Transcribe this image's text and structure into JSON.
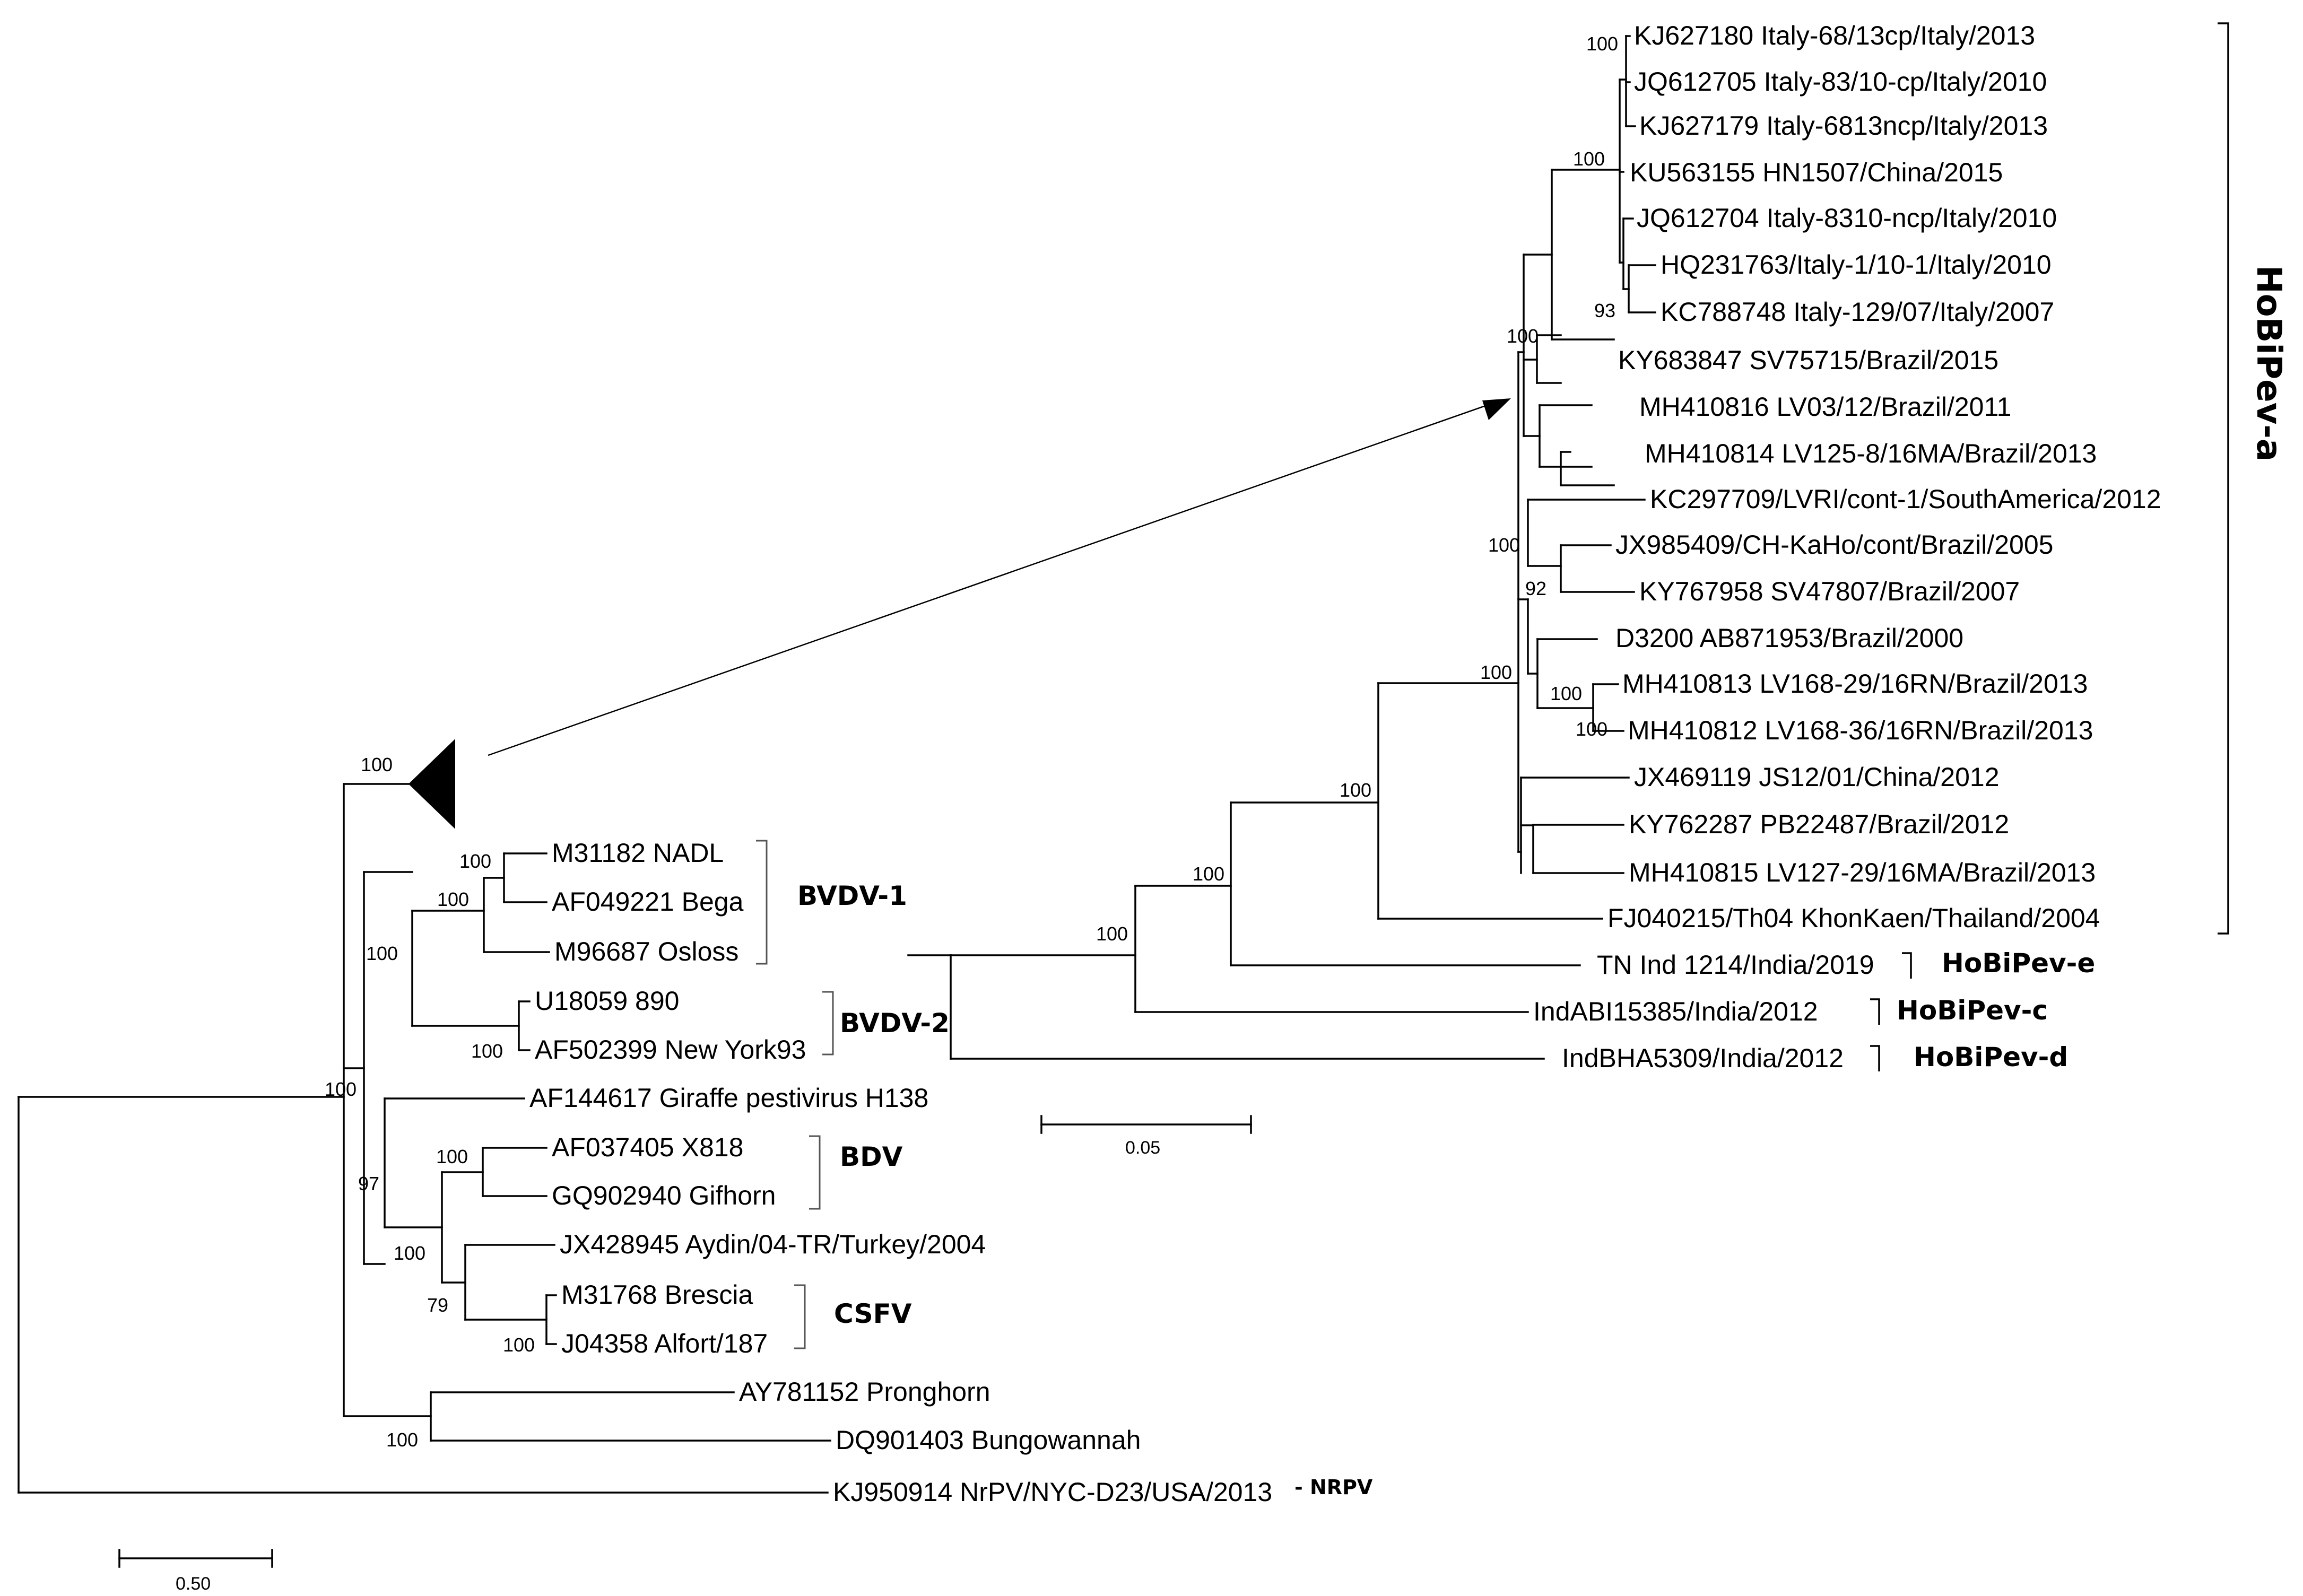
{
  "figure": {
    "type": "phylogenetic-tree",
    "scale_bars": {
      "main": "0.50",
      "inset": "0.05"
    }
  },
  "leaves": {
    "kj627180": "KJ627180 Italy-68/13cp/Italy/2013",
    "jq612705": "JQ612705 Italy-83/10-cp/Italy/2010",
    "kj627179": "KJ627179 Italy-6813ncp/Italy/2013",
    "ku563155": "KU563155 HN1507/China/2015",
    "jq612704": "JQ612704 Italy-8310-ncp/Italy/2010",
    "hq231763": "HQ231763/Italy-1/10-1/Italy/2010",
    "kc788748": "KC788748 Italy-129/07/Italy/2007",
    "ky683847": "KY683847 SV75715/Brazil/2015",
    "mh410816": "MH410816 LV03/12/Brazil/2011",
    "mh410814": "MH410814 LV125-8/16MA/Brazil/2013",
    "kc297709": "KC297709/LVRI/cont-1/SouthAmerica/2012",
    "jx985409": "JX985409/CH-KaHo/cont/Brazil/2005",
    "ky767958": "KY767958 SV47807/Brazil/2007",
    "d3200": "D3200 AB871953/Brazil/2000",
    "mh410813": "MH410813 LV168-29/16RN/Brazil/2013",
    "mh410812": "MH410812 LV168-36/16RN/Brazil/2013",
    "jx469119": "JX469119 JS12/01/China/2012",
    "ky762287": "KY762287 PB22487/Brazil/2012",
    "mh410815": "MH410815 LV127-29/16MA/Brazil/2013",
    "fj040215": "FJ040215/Th04 KhonKaen/Thailand/2004",
    "tn_ind": "TN Ind 1214/India/2019",
    "indabi": "IndABI15385/India/2012",
    "indbha": "IndBHA5309/India/2012",
    "m31182": "M31182 NADL",
    "af049221": "AF049221 Bega",
    "m96687": "M96687 Osloss",
    "u18059": "U18059 890",
    "af502399": "AF502399 New York93",
    "af144617": "AF144617 Giraffe pestivirus H138",
    "af037405": "AF037405 X818",
    "gq902940": "GQ902940 Gifhorn",
    "jx428945": "JX428945 Aydin/04-TR/Turkey/2004",
    "m31768": "M31768 Brescia",
    "j04358": "J04358 Alfort/187",
    "ay781152": "AY781152 Pronghorn",
    "dq901403": "DQ901403 Bungowannah",
    "kj950914": "KJ950914 NrPV/NYC-D23/USA/2013"
  },
  "clades": {
    "hobipev_a": "HoBiPev-a",
    "hobipev_e": "HoBiPev-e",
    "hobipev_c": "HoBiPev-c",
    "hobipev_d": "HoBiPev-d",
    "bvdv1": "BVDV-1",
    "bvdv2": "BVDV-2",
    "bdv": "BDV",
    "csfv": "CSFV",
    "nrpv": "- NRPV"
  },
  "clade_colors": {
    "hobipev_a": "#000000",
    "hobipev_e": "#1f1f8f",
    "hobipev_c": "#9b1a1a",
    "hobipev_d": "#1f8a1f"
  },
  "bootstrap": {
    "a_top": "100",
    "a_italy": "100",
    "a_main": "100",
    "a_kc": "93",
    "a_sub": "100",
    "a_jx": "92",
    "a_lv": "100",
    "a_lv168": "100",
    "a_clade": "100",
    "hobi_e": "100",
    "hobi_c": "100",
    "hobi_d": "100",
    "collapsed": "100",
    "bvdv1_top": "100",
    "bvdv1": "100",
    "bvdv": "100",
    "bvdv2": "100",
    "ingroup": "100",
    "giraffe": "97",
    "bdv": "100",
    "bdv_csfv": "100",
    "csfv_tk": "79",
    "csfv": "100",
    "prong": "100"
  }
}
